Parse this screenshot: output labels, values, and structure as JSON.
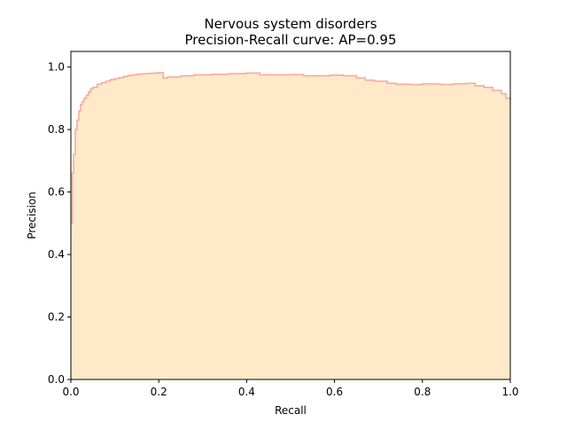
{
  "chart_data": {
    "type": "area",
    "title": "Nervous system disorders",
    "subtitle": "Precision-Recall curve: AP=0.95",
    "xlabel": "Recall",
    "ylabel": "Precision",
    "xlim": [
      0.0,
      1.0
    ],
    "ylim": [
      0.0,
      1.05
    ],
    "grid": false,
    "x_ticks": [
      "0.0",
      "0.2",
      "0.4",
      "0.6",
      "0.8",
      "1.0"
    ],
    "y_ticks": [
      "0.0",
      "0.2",
      "0.4",
      "0.6",
      "0.8",
      "1.0"
    ],
    "step": "post",
    "fill_color": "#ffe9c9",
    "line_color": "#f5a89a",
    "recall": [
      0.0,
      0.003,
      0.006,
      0.01,
      0.014,
      0.018,
      0.022,
      0.026,
      0.03,
      0.035,
      0.04,
      0.045,
      0.05,
      0.06,
      0.07,
      0.08,
      0.09,
      0.1,
      0.11,
      0.12,
      0.13,
      0.14,
      0.15,
      0.16,
      0.17,
      0.18,
      0.19,
      0.2,
      0.21,
      0.22,
      0.25,
      0.28,
      0.32,
      0.36,
      0.4,
      0.43,
      0.47,
      0.5,
      0.53,
      0.56,
      0.59,
      0.62,
      0.65,
      0.67,
      0.69,
      0.72,
      0.74,
      0.77,
      0.8,
      0.84,
      0.87,
      0.9,
      0.92,
      0.94,
      0.96,
      0.98,
      0.99,
      1.0
    ],
    "precision": [
      0.5,
      0.66,
      0.72,
      0.8,
      0.83,
      0.86,
      0.88,
      0.89,
      0.9,
      0.91,
      0.92,
      0.93,
      0.935,
      0.945,
      0.95,
      0.955,
      0.96,
      0.963,
      0.966,
      0.97,
      0.973,
      0.975,
      0.977,
      0.978,
      0.979,
      0.98,
      0.981,
      0.982,
      0.965,
      0.968,
      0.972,
      0.975,
      0.977,
      0.979,
      0.981,
      0.975,
      0.975,
      0.976,
      0.972,
      0.972,
      0.974,
      0.972,
      0.965,
      0.958,
      0.955,
      0.948,
      0.945,
      0.944,
      0.946,
      0.944,
      0.946,
      0.948,
      0.94,
      0.935,
      0.925,
      0.915,
      0.9,
      0.895
    ]
  }
}
